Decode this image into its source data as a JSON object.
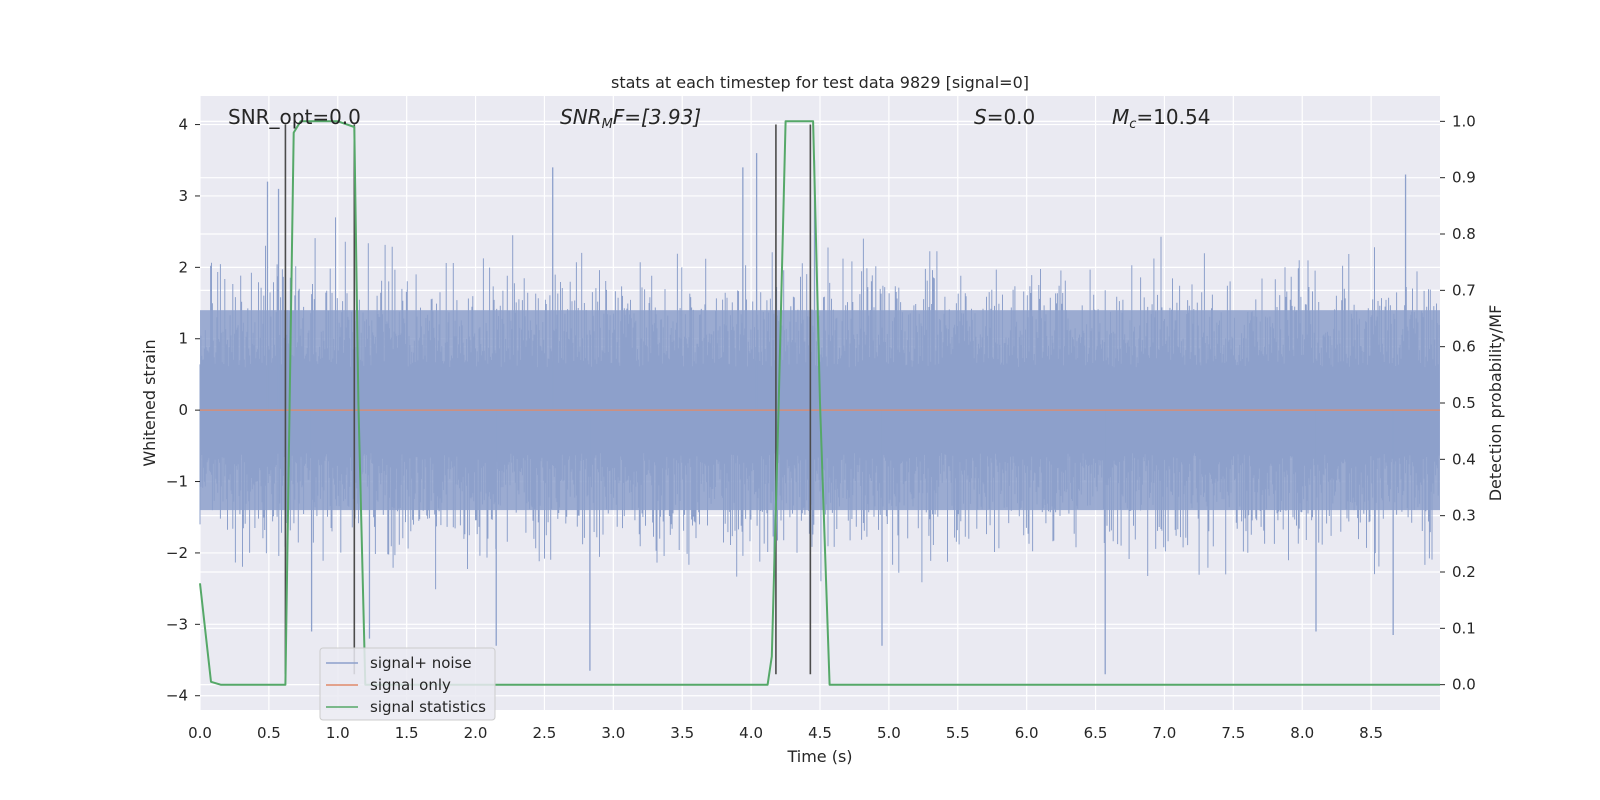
{
  "chart_data": {
    "type": "line",
    "title": "stats at each timestep for test data 9829 [signal=0]",
    "xlabel": "Time (s)",
    "ylabel": "Whitened strain",
    "y2label": "Detection probability/MF",
    "xlim": [
      0.0,
      9.0
    ],
    "ylim": [
      -4.2,
      4.4
    ],
    "y2lim": [
      -0.045,
      1.045
    ],
    "xticks": [
      "0.0",
      "0.5",
      "1.0",
      "1.5",
      "2.0",
      "2.5",
      "3.0",
      "3.5",
      "4.0",
      "4.5",
      "5.0",
      "5.5",
      "6.0",
      "6.5",
      "7.0",
      "7.5",
      "8.0",
      "8.5"
    ],
    "yticks": [
      "4",
      "3",
      "2",
      "1",
      "0",
      "−1",
      "−2",
      "−3",
      "−4"
    ],
    "y2ticks": [
      "1.0",
      "0.9",
      "0.8",
      "0.7",
      "0.6",
      "0.5",
      "0.4",
      "0.3",
      "0.2",
      "0.1",
      "0.0"
    ],
    "grid": true,
    "legend_position": "lower-left",
    "colors": {
      "noise": "#8da0cb",
      "signal_only": "#e08a6a",
      "statistics": "#55a868",
      "vlines": "#4c4c4c",
      "plot_bg": "#eaeaf2"
    },
    "series": [
      {
        "name": "signal+ noise",
        "axis": "left",
        "description_values": "noise envelope",
        "band_typical": [
          -1.4,
          1.4
        ],
        "extreme_peaks": [
          {
            "x": 0.49,
            "y": 3.2
          },
          {
            "x": 0.57,
            "y": 3.1
          },
          {
            "x": 0.81,
            "y": -3.1
          },
          {
            "x": 1.23,
            "y": -3.2
          },
          {
            "x": 2.15,
            "y": -3.3
          },
          {
            "x": 2.56,
            "y": 3.4
          },
          {
            "x": 2.83,
            "y": -3.65
          },
          {
            "x": 3.94,
            "y": 3.4
          },
          {
            "x": 4.04,
            "y": 3.6
          },
          {
            "x": 4.46,
            "y": 3.5
          },
          {
            "x": 4.95,
            "y": -3.3
          },
          {
            "x": 6.57,
            "y": -3.7
          },
          {
            "x": 8.1,
            "y": -3.1
          },
          {
            "x": 8.75,
            "y": 3.3
          },
          {
            "x": 8.66,
            "y": -3.15
          }
        ]
      },
      {
        "name": "signal only",
        "axis": "left",
        "x": [
          0.0,
          9.0
        ],
        "y": [
          0.0,
          0.0
        ]
      },
      {
        "name": "signal statistics",
        "axis": "right",
        "x": [
          0.0,
          0.08,
          0.15,
          0.62,
          0.68,
          0.73,
          0.8,
          1.0,
          1.12,
          1.15,
          1.2,
          4.12,
          4.15,
          4.2,
          4.25,
          4.45,
          4.5,
          4.57,
          9.0
        ],
        "y": [
          0.18,
          0.005,
          0.0,
          0.0,
          0.98,
          1.0,
          1.0,
          1.0,
          0.99,
          0.5,
          0.0,
          0.0,
          0.05,
          0.5,
          1.0,
          1.0,
          0.5,
          0.0,
          0.0
        ]
      }
    ],
    "vertical_lines": [
      {
        "x": 0.62,
        "y_top": 4.0,
        "y_bottom": -3.7
      },
      {
        "x": 1.12,
        "y_top": 4.0,
        "y_bottom": -3.7
      },
      {
        "x": 4.18,
        "y_top": 4.0,
        "y_bottom": -3.7
      },
      {
        "x": 4.43,
        "y_top": 4.0,
        "y_bottom": -3.7
      }
    ],
    "annotations": {
      "snr_opt": "SNR_opt=0.0",
      "snr_mf_main": "SNR",
      "snr_mf_sub": "M",
      "snr_mf_rest": "F=[3.93]",
      "s_italic": "S",
      "s_rest": "=0.0",
      "mc_main": "M",
      "mc_sub": "c",
      "mc_rest": "=10.54"
    },
    "legend": [
      "signal+ noise",
      "signal only",
      "signal statistics"
    ]
  }
}
